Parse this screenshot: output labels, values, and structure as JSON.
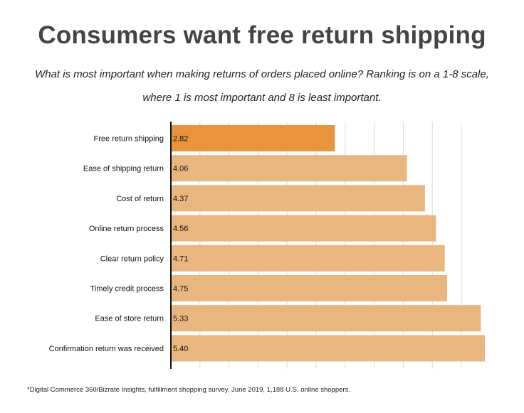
{
  "header": {
    "title": "Consumers want free return shipping",
    "subtitle": "What is most important when making returns of orders placed online? Ranking is on a 1-8 scale, where 1 is most important and 8 is least important."
  },
  "footnote": "*Digital Commerce 360/Bizrate Insights, fulfillment shopping survey, June 2019, 1,188 U.S. online shoppers.",
  "colors": {
    "highlight_bar": "#E8943D",
    "bar": "#E9B67F",
    "axis": "#111111",
    "grid": "#DDDDDD"
  },
  "chart_data": {
    "type": "bar",
    "orientation": "horizontal",
    "categories": [
      "Free return shipping",
      "Ease of shipping return",
      "Cost of return",
      "Online return process",
      "Clear return policy",
      "Timely credit process",
      "Ease of store return",
      "Confirmation return was received"
    ],
    "values": [
      2.82,
      4.06,
      4.37,
      4.56,
      4.71,
      4.75,
      5.33,
      5.4
    ],
    "value_labels": [
      "2.82",
      "4.06",
      "4.37",
      "4.56",
      "4.71",
      "4.75",
      "5.33",
      "5.40"
    ],
    "highlight_index": 0,
    "xlim": [
      0,
      5.4
    ],
    "grid": true,
    "legend": "none"
  }
}
